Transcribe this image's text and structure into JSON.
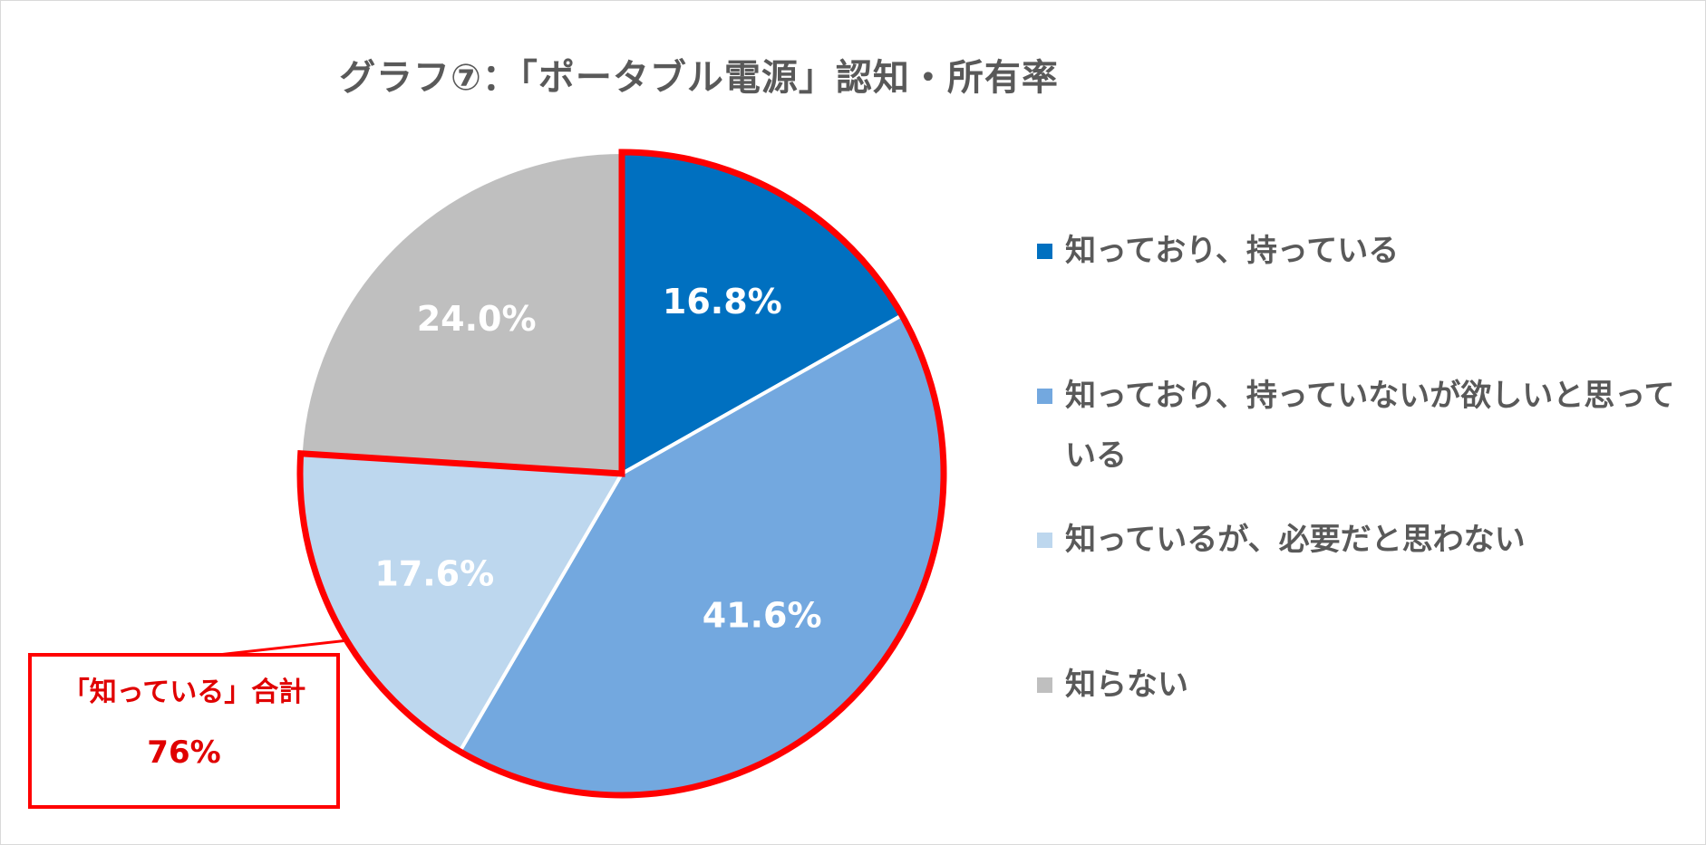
{
  "chart_data": {
    "type": "pie",
    "title": "グラフ⑦：「ポータブル電源」認知・所有率",
    "slices": [
      {
        "label": "知っており、持っている",
        "value": 16.8,
        "value_label": "16.8%",
        "color": "#0070C0"
      },
      {
        "label": "知っており、持っていないが欲しいと思っている",
        "value": 41.6,
        "value_label": "41.6%",
        "color": "#73A8DF"
      },
      {
        "label": "知っているが、必要だと思わない",
        "value": 17.6,
        "value_label": "17.6%",
        "color": "#BDD7EE"
      },
      {
        "label": "知らない",
        "value": 24.0,
        "value_label": "24.0%",
        "color": "#BFBFBF"
      }
    ],
    "legend_position": "right",
    "start": "12 o'clock, clockwise"
  },
  "callout": {
    "line1": "「知っている」合計",
    "line2": "76%",
    "highlight_color": "#FF0000"
  }
}
